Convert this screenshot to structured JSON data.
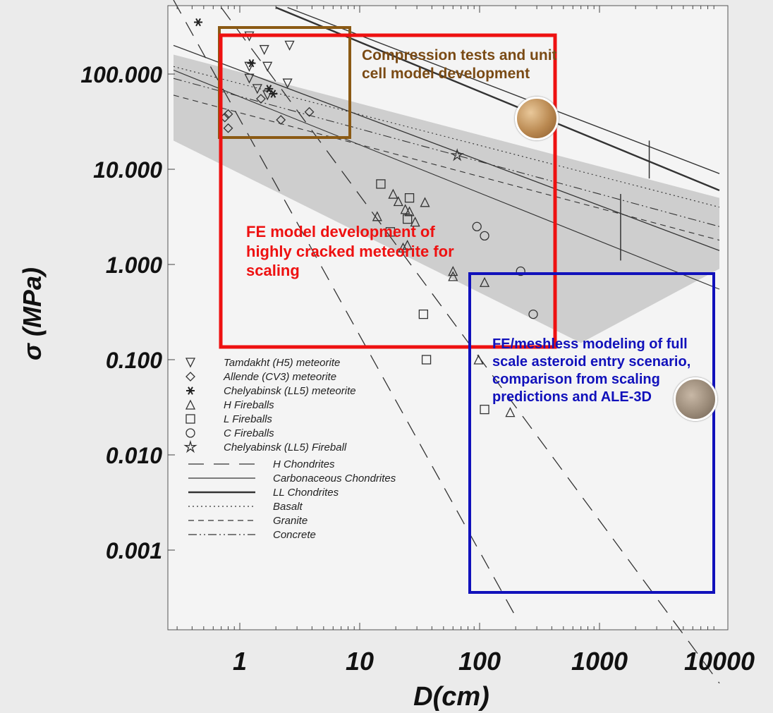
{
  "chart_data": {
    "type": "scatter",
    "xscale": "log",
    "yscale": "log",
    "xlabel": "D(cm)",
    "ylabel": "σ (MPa)",
    "xlim": [
      0.28,
      10000
    ],
    "ylim": [
      0.0002,
      500
    ],
    "xticks": [
      "1",
      "10",
      "100",
      "1000",
      "10000"
    ],
    "yticks": [
      "100.000",
      "10.000",
      "1.000",
      "0.100",
      "0.010",
      "0.001"
    ],
    "legend_position": "bottom-left",
    "series": [
      {
        "name": "Tamdakht (H5) meteorite",
        "marker": "triangle-down",
        "x": [
          1.2,
          1.6,
          2.6,
          1.2,
          1.7,
          2.5,
          1.2,
          1.4,
          1.7
        ],
        "y": [
          250,
          180,
          200,
          120,
          120,
          80,
          90,
          70,
          60
        ]
      },
      {
        "name": "Allende (CV3) meteorite",
        "marker": "diamond",
        "x": [
          0.75,
          0.8,
          0.8,
          1.5,
          2.2,
          3.8
        ],
        "y": [
          35,
          38,
          27,
          55,
          33,
          40
        ]
      },
      {
        "name": "Chelyabinsk (LL5) meteorite",
        "marker": "star6",
        "x": [
          0.45,
          1.25,
          1.9,
          1.75
        ],
        "y": [
          350,
          130,
          62,
          70
        ]
      },
      {
        "name": "H Fireballs",
        "marker": "triangle",
        "x": [
          19,
          21,
          24,
          26,
          35,
          14,
          29,
          23,
          60,
          60,
          110,
          98,
          180,
          25
        ],
        "y": [
          5.5,
          4.6,
          3.8,
          3.6,
          4.5,
          3.2,
          2.8,
          1.5,
          0.75,
          0.85,
          0.65,
          0.1,
          0.028,
          1.6
        ]
      },
      {
        "name": "L Fireballs",
        "marker": "square",
        "x": [
          15,
          18,
          26,
          25,
          34,
          36,
          110
        ],
        "y": [
          7.0,
          2.2,
          5.0,
          3.0,
          0.3,
          0.1,
          0.03
        ]
      },
      {
        "name": "C Fireballs",
        "marker": "circle",
        "x": [
          95,
          110,
          220,
          280
        ],
        "y": [
          2.5,
          2.0,
          0.85,
          0.3
        ]
      },
      {
        "name": "Chelyabinsk (LL5) Fireball",
        "marker": "star5",
        "x": [
          65
        ],
        "y": [
          14
        ]
      }
    ],
    "lines": [
      {
        "name": "H Chondrites",
        "style": "long-dash"
      },
      {
        "name": "Carbonaceous Chondrites",
        "style": "solid"
      },
      {
        "name": "LL Chondrites",
        "style": "solid-thick"
      },
      {
        "name": "Basalt",
        "style": "dotted"
      },
      {
        "name": "Granite",
        "style": "dashed"
      },
      {
        "name": "Concrete",
        "style": "dash-dot"
      }
    ]
  },
  "annotations": {
    "brown": "Compression tests and unit cell model development",
    "red": "FE model development of highly cracked meteorite for scaling",
    "blue": "FE/meshless modeling of full scale asteroid entry scenario, comparison from scaling predictions and ALE-3D"
  },
  "colors": {
    "brown_box": "#8b5a14",
    "red_box": "#ee1111",
    "blue_box": "#1111bb",
    "band": "#c4c4c4"
  }
}
